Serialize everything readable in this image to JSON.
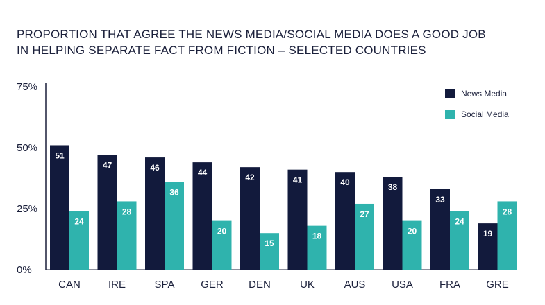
{
  "chart_data": {
    "type": "bar",
    "title_lines": [
      "PROPORTION THAT AGREE THE NEWS MEDIA/SOCIAL MEDIA DOES A GOOD JOB",
      "IN HELPING SEPARATE FACT FROM FICTION – SELECTED COUNTRIES"
    ],
    "categories": [
      "CAN",
      "IRE",
      "SPA",
      "GER",
      "DEN",
      "UK",
      "AUS",
      "USA",
      "FRA",
      "GRE"
    ],
    "series": [
      {
        "name": "News Media",
        "color": "#121a3c",
        "values": [
          51,
          47,
          46,
          44,
          42,
          41,
          40,
          38,
          33,
          19
        ]
      },
      {
        "name": "Social Media",
        "color": "#2fb3ad",
        "values": [
          24,
          28,
          36,
          20,
          15,
          18,
          27,
          20,
          24,
          28
        ]
      }
    ],
    "ylim": [
      0,
      75
    ],
    "yticks": [
      0,
      25,
      50,
      75
    ],
    "ytick_labels": [
      "0%",
      "25%",
      "50%",
      "75%"
    ],
    "legend_position": "top-right"
  }
}
